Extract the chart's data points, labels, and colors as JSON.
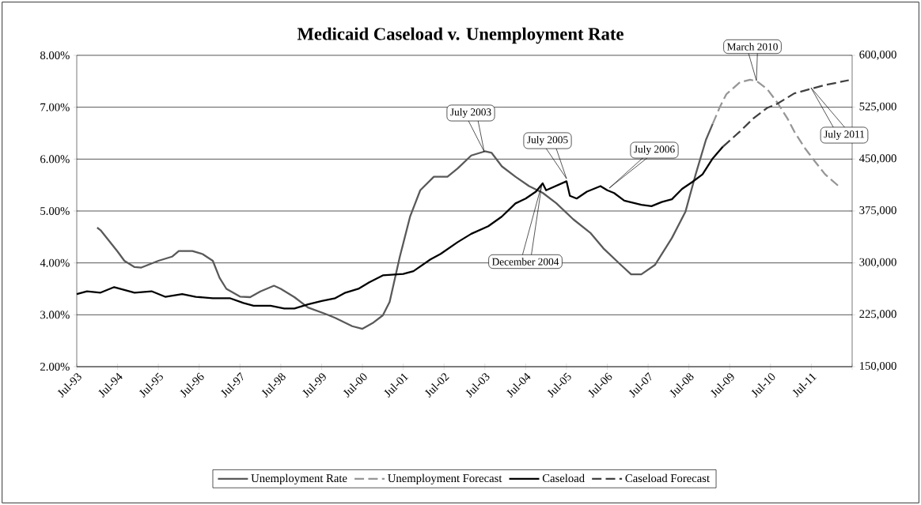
{
  "chart_data": {
    "type": "line",
    "title": "Medicaid Caseload v. Unemployment Rate",
    "xlim": [
      "1993-07",
      "2012-07"
    ],
    "xticks": [
      {
        "value": "1993-07",
        "label": "Jul-93"
      },
      {
        "value": "1994-07",
        "label": "Jul-94"
      },
      {
        "value": "1995-07",
        "label": "Jul-95"
      },
      {
        "value": "1996-07",
        "label": "Jul-96"
      },
      {
        "value": "1997-07",
        "label": "Jul-97"
      },
      {
        "value": "1998-07",
        "label": "Jul-98"
      },
      {
        "value": "1999-07",
        "label": "Jul-99"
      },
      {
        "value": "2000-07",
        "label": "Jul-00"
      },
      {
        "value": "2001-07",
        "label": "Jul-01"
      },
      {
        "value": "2002-07",
        "label": "Jul-02"
      },
      {
        "value": "2003-07",
        "label": "Jul-03"
      },
      {
        "value": "2004-07",
        "label": "Jul-04"
      },
      {
        "value": "2005-07",
        "label": "Jul-05"
      },
      {
        "value": "2006-07",
        "label": "Jul-06"
      },
      {
        "value": "2007-07",
        "label": "Jul-07"
      },
      {
        "value": "2008-07",
        "label": "Jul-08"
      },
      {
        "value": "2009-07",
        "label": "Jul-09"
      },
      {
        "value": "2010-07",
        "label": "Jul-10"
      },
      {
        "value": "2011-07",
        "label": "Jul-11"
      },
      {
        "value": "2012-07",
        "label": null
      }
    ],
    "ylim": [
      2,
      8
    ],
    "yticks": [
      {
        "value": 2,
        "label": "2.00%"
      },
      {
        "value": 3,
        "label": "3.00%"
      },
      {
        "value": 4,
        "label": "4.00%"
      },
      {
        "value": 5,
        "label": "5.00%"
      },
      {
        "value": 6,
        "label": "6.00%"
      },
      {
        "value": 7,
        "label": "7.00%"
      },
      {
        "value": 8,
        "label": "8.00%"
      }
    ],
    "y2lim": [
      150000,
      600000
    ],
    "y2ticks": [
      {
        "value": 150000,
        "label": "150,000"
      },
      {
        "value": 225000,
        "label": "225,000"
      },
      {
        "value": 300000,
        "label": "300,000"
      },
      {
        "value": 375000,
        "label": "375,000"
      },
      {
        "value": 450000,
        "label": "450,000"
      },
      {
        "value": 525000,
        "label": "525,000"
      },
      {
        "value": 600000,
        "label": "600,000"
      }
    ],
    "grid": "y",
    "legend": "bottom",
    "series": [
      {
        "name": "Unemployment Rate",
        "color": "#595959",
        "line_style": "solid",
        "x": [
          "1994-01",
          "1994-02",
          "1994-07",
          "1994-09",
          "1994-12",
          "1995-02",
          "1995-07",
          "1995-11",
          "1996-01",
          "1996-05",
          "1996-08",
          "1996-11",
          "1997-01",
          "1997-03",
          "1997-07",
          "1997-10",
          "1998-01",
          "1998-05",
          "1998-07",
          "1998-11",
          "1999-03",
          "1999-08",
          "1999-11",
          "2000-04",
          "2000-07",
          "2000-10",
          "2001-01",
          "2001-03",
          "2001-06",
          "2001-09",
          "2001-12",
          "2002-04",
          "2002-08",
          "2002-11",
          "2003-03",
          "2003-07",
          "2003-09",
          "2003-12",
          "2004-04",
          "2004-08",
          "2004-12",
          "2005-04",
          "2005-09",
          "2006-02",
          "2006-06",
          "2006-11",
          "2007-02",
          "2007-05",
          "2007-09",
          "2008-02",
          "2008-06",
          "2008-09",
          "2008-12",
          "2009-02"
        ],
        "values": [
          4.68,
          4.63,
          4.22,
          4.04,
          3.92,
          3.91,
          4.04,
          4.12,
          4.23,
          4.23,
          4.17,
          4.04,
          3.71,
          3.5,
          3.35,
          3.34,
          3.45,
          3.56,
          3.5,
          3.34,
          3.14,
          3.02,
          2.94,
          2.78,
          2.73,
          2.84,
          2.99,
          3.25,
          4.12,
          4.89,
          5.4,
          5.66,
          5.66,
          5.82,
          6.07,
          6.15,
          6.12,
          5.86,
          5.66,
          5.48,
          5.35,
          5.15,
          4.84,
          4.58,
          4.27,
          3.96,
          3.78,
          3.78,
          3.96,
          4.48,
          4.99,
          5.71,
          6.37,
          6.68
        ]
      },
      {
        "name": "Unemployment Forecast",
        "color": "#969696",
        "line_style": "dashed",
        "x": [
          "2009-02",
          "2009-04",
          "2009-06",
          "2009-10",
          "2010-01",
          "2010-03",
          "2010-06",
          "2010-09",
          "2010-12",
          "2011-02",
          "2011-05",
          "2011-08",
          "2011-11",
          "2012-03"
        ],
        "values": [
          6.68,
          6.99,
          7.25,
          7.48,
          7.53,
          7.5,
          7.35,
          7.09,
          6.78,
          6.53,
          6.22,
          5.96,
          5.71,
          5.48
        ]
      },
      {
        "name": "Caseload",
        "color": "#000000",
        "line_style": "solid",
        "axis": "y2",
        "x": [
          "1993-07",
          "1993-10",
          "1994-02",
          "1994-06",
          "1994-09",
          "1994-12",
          "1995-05",
          "1995-09",
          "1996-02",
          "1996-06",
          "1996-11",
          "1997-04",
          "1997-08",
          "1997-11",
          "1998-04",
          "1998-08",
          "1998-11",
          "1999-03",
          "1999-07",
          "1999-11",
          "2000-02",
          "2000-06",
          "2000-09",
          "2001-01",
          "2001-07",
          "2001-10",
          "2002-03",
          "2002-06",
          "2002-11",
          "2003-03",
          "2003-08",
          "2003-12",
          "2004-04",
          "2004-07",
          "2004-10",
          "2004-12",
          "2005-01",
          "2005-07",
          "2005-08",
          "2005-10",
          "2006-01",
          "2006-05",
          "2006-07",
          "2006-09",
          "2006-12",
          "2007-05",
          "2007-08",
          "2007-11",
          "2008-02",
          "2008-05",
          "2008-08",
          "2008-11",
          "2009-02",
          "2009-05"
        ],
        "values": [
          255000,
          259000,
          257000,
          265000,
          261000,
          257000,
          259000,
          251000,
          255000,
          251000,
          249000,
          249000,
          242000,
          238000,
          238000,
          234000,
          234000,
          240000,
          245000,
          249000,
          257000,
          263000,
          272000,
          282000,
          284000,
          288000,
          305000,
          313000,
          330000,
          342000,
          353000,
          367000,
          386000,
          393000,
          403000,
          415000,
          405000,
          418000,
          397000,
          393000,
          403000,
          411000,
          405000,
          401000,
          390000,
          384000,
          382000,
          388000,
          392000,
          407000,
          417000,
          428000,
          451000,
          468000
        ]
      },
      {
        "name": "Caseload Forecast",
        "color": "#404040",
        "line_style": "dashed",
        "axis": "y2",
        "x": [
          "2009-05",
          "2009-10",
          "2010-02",
          "2010-06",
          "2010-09",
          "2011-02",
          "2011-05",
          "2011-08",
          "2011-11",
          "2012-06"
        ],
        "values": [
          468000,
          490000,
          509000,
          524000,
          530000,
          545000,
          549000,
          553000,
          557000,
          564000
        ]
      }
    ],
    "annotations": [
      "July 2003",
      "July 2005",
      "July 2006",
      "December 2004",
      "March 2010",
      "July 2011"
    ]
  }
}
